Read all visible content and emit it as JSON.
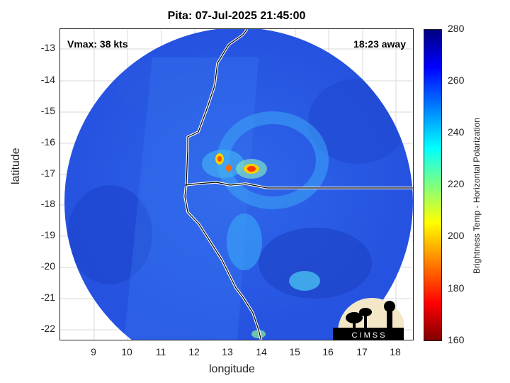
{
  "title": "Pita: 07-Jul-2025 21:45:00",
  "vmax": "Vmax: 38 kts",
  "away": "18:23 away",
  "xlabel": "longitude",
  "ylabel": "latitude",
  "x_ticks": [
    "9",
    "10",
    "11",
    "12",
    "13",
    "14",
    "15",
    "16",
    "17",
    "18"
  ],
  "y_ticks": [
    "-13",
    "-14",
    "-15",
    "-16",
    "-17",
    "-18",
    "-19",
    "-20",
    "-21",
    "-22"
  ],
  "colorbar": {
    "label": "Brightness Temp - Horizontal Polarization",
    "ticks": [
      "280",
      "260",
      "240",
      "220",
      "200",
      "180",
      "160"
    ],
    "range": [
      160,
      280
    ],
    "colormap": "jet"
  },
  "logo_text": "C I M S S",
  "colors": {
    "swath": "#2a5ee8",
    "dark": "#1a3fc0",
    "warm_core": "#ff3a00",
    "coast": "#ffffff"
  }
}
